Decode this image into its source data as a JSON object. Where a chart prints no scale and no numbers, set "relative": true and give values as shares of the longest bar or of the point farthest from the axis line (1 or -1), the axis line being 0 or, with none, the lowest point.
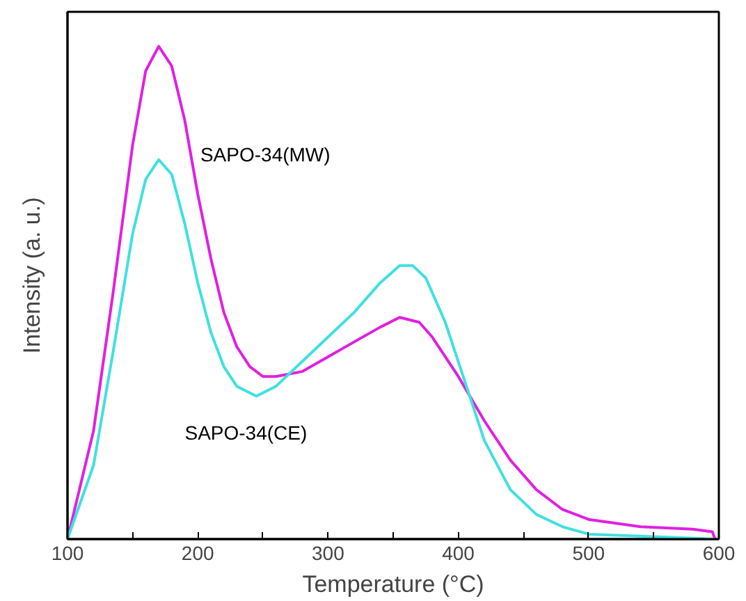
{
  "chart_data": {
    "type": "line",
    "xlabel": "Temperature (°C)",
    "ylabel": "Intensity (a. u.)",
    "relative": true,
    "xlim": [
      100,
      600
    ],
    "xticks": [
      100,
      {
        "value": 150,
        "label": null
      },
      200,
      {
        "value": 250,
        "label": null
      },
      300,
      {
        "value": 350,
        "label": null
      },
      400,
      {
        "value": 450,
        "label": null
      },
      500,
      {
        "value": 550,
        "label": null
      },
      600
    ],
    "series": [
      {
        "name": "SAPO-34(MW)",
        "color": "#e020e0",
        "x": [
          100,
          120,
          135,
          150,
          160,
          170,
          180,
          190,
          200,
          210,
          220,
          230,
          240,
          250,
          260,
          280,
          300,
          320,
          340,
          355,
          370,
          380,
          400,
          420,
          440,
          460,
          480,
          500,
          540,
          580,
          595,
          597
        ],
        "values": [
          0,
          0.22,
          0.5,
          0.8,
          0.95,
          1.0,
          0.96,
          0.85,
          0.7,
          0.57,
          0.46,
          0.39,
          0.35,
          0.33,
          0.33,
          0.34,
          0.37,
          0.4,
          0.43,
          0.45,
          0.44,
          0.41,
          0.33,
          0.24,
          0.16,
          0.1,
          0.06,
          0.04,
          0.025,
          0.02,
          0.015,
          0
        ]
      },
      {
        "name": "SAPO-34(CE)",
        "color": "#40e0e0",
        "x": [
          100,
          120,
          135,
          150,
          160,
          170,
          180,
          190,
          200,
          210,
          220,
          230,
          245,
          260,
          280,
          300,
          320,
          340,
          355,
          365,
          375,
          390,
          400,
          410,
          420,
          440,
          460,
          480,
          500,
          550,
          597
        ],
        "values": [
          0,
          0.15,
          0.38,
          0.62,
          0.73,
          0.77,
          0.74,
          0.64,
          0.52,
          0.42,
          0.35,
          0.31,
          0.29,
          0.31,
          0.36,
          0.41,
          0.46,
          0.52,
          0.555,
          0.555,
          0.53,
          0.44,
          0.36,
          0.28,
          0.2,
          0.1,
          0.05,
          0.025,
          0.01,
          0.005,
          0
        ]
      }
    ],
    "legend": false,
    "grid": false,
    "marker": "none",
    "line_style": "solid"
  }
}
